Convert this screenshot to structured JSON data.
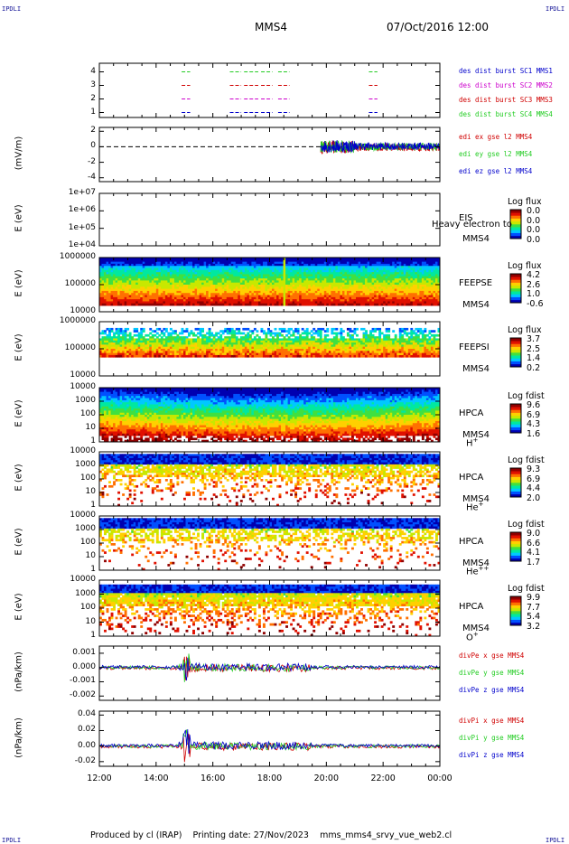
{
  "header": {
    "corner_text": "IPDLI",
    "spacecraft": "MMS4",
    "datetime": "07/Oct/2016 12:00"
  },
  "footer": {
    "produced": "Produced by cl (IRAP)",
    "printing": "Printing date: 27/Nov/2023",
    "script": "mms_mms4_srvy_vue_web2.cl"
  },
  "colors": {
    "red": "#d00000",
    "green": "#22cc22",
    "blue": "#0000cc",
    "magenta": "#cc00cc",
    "colormap": [
      "#0000b0",
      "#0050ff",
      "#00c8ff",
      "#00e8a0",
      "#40e040",
      "#c8e800",
      "#ffd000",
      "#ff7000",
      "#e01000",
      "#900000"
    ]
  },
  "chart_data": [
    {
      "type": "timeline",
      "ylabel": "",
      "yticks": [
        "4",
        "3",
        "2",
        "1"
      ],
      "series": [
        {
          "name": "des dist burst SC1 MMS1",
          "color": "#0000cc",
          "level": 1
        },
        {
          "name": "des dist burst SC2 MMS2",
          "color": "#cc00cc",
          "level": 2
        },
        {
          "name": "des dist burst SC3 MMS3",
          "color": "#d00000",
          "level": 3
        },
        {
          "name": "des dist burst SC4 MMS4",
          "color": "#22cc22",
          "level": 4
        }
      ],
      "intervals": [
        [
          14.9,
          15.2
        ],
        [
          16.6,
          17.0
        ],
        [
          17.1,
          17.6
        ],
        [
          17.7,
          18.1
        ],
        [
          18.3,
          18.7
        ],
        [
          21.5,
          21.8
        ]
      ]
    },
    {
      "type": "line",
      "ylabel": "(mV/m)",
      "yticks": [
        "2",
        "0",
        "-2",
        "-4"
      ],
      "ylim": [
        -4.5,
        2.5
      ],
      "series": [
        {
          "name": "edi ex gse l2 MMS4",
          "color": "#d00000"
        },
        {
          "name": "edi ey gse l2 MMS4",
          "color": "#22cc22"
        },
        {
          "name": "edi ez gse l2 MMS4",
          "color": "#0000cc"
        }
      ],
      "data_start": 19.8,
      "note_dashed_zero": true
    },
    {
      "type": "heatmap",
      "ylabel": "E (eV)",
      "yticks": [
        "1e+07",
        "1e+06",
        "1e+05",
        "1e+04"
      ],
      "instrument": [
        "EIS",
        "MMS4"
      ],
      "overlay_text": "Heavy electron to",
      "colorbar_title": "Log flux",
      "colorbar_values": [
        "0.0",
        "0.0",
        "0.0",
        "0.0"
      ],
      "empty": true
    },
    {
      "type": "heatmap",
      "ylabel": "E (eV)",
      "yticks": [
        "1000000",
        "100000",
        "10000"
      ],
      "instrument": [
        "FEEPSE",
        "MMS4"
      ],
      "colorbar_title": "Log flux",
      "colorbar_values": [
        "4.2",
        "2.6",
        "1.0",
        "-0.6"
      ]
    },
    {
      "type": "heatmap",
      "ylabel": "E (eV)",
      "yticks": [
        "1000000",
        "100000",
        "10000"
      ],
      "instrument": [
        "FEEPSI",
        "MMS4"
      ],
      "colorbar_title": "Log flux",
      "colorbar_values": [
        "3.7",
        "2.5",
        "1.4",
        "0.2"
      ]
    },
    {
      "type": "heatmap",
      "ylabel": "E (eV)",
      "yticks": [
        "10000",
        "1000",
        "100",
        "10",
        "1"
      ],
      "instrument": [
        "HPCA",
        "MMS4",
        "H",
        "+"
      ],
      "colorbar_title": "Log fdist",
      "colorbar_values": [
        "9.6",
        "6.9",
        "4.3",
        "1.6"
      ]
    },
    {
      "type": "heatmap",
      "ylabel": "E (eV)",
      "yticks": [
        "10000",
        "1000",
        "100",
        "10",
        "1"
      ],
      "instrument": [
        "HPCA",
        "MMS4",
        "He",
        "+"
      ],
      "colorbar_title": "Log fdist",
      "colorbar_values": [
        "9.3",
        "6.9",
        "4.4",
        "2.0"
      ]
    },
    {
      "type": "heatmap",
      "ylabel": "E (eV)",
      "yticks": [
        "10000",
        "1000",
        "100",
        "10",
        "1"
      ],
      "instrument": [
        "HPCA",
        "MMS4",
        "He",
        "++"
      ],
      "colorbar_title": "Log fdist",
      "colorbar_values": [
        "9.0",
        "6.6",
        "4.1",
        "1.7"
      ]
    },
    {
      "type": "heatmap",
      "ylabel": "E (eV)",
      "yticks": [
        "10000",
        "1000",
        "100",
        "10",
        "1"
      ],
      "instrument": [
        "HPCA",
        "MMS4",
        "O",
        "+"
      ],
      "colorbar_title": "Log fdist",
      "colorbar_values": [
        "9.9",
        "7.7",
        "5.4",
        "3.2"
      ]
    },
    {
      "type": "line",
      "ylabel": "(nPa/km)",
      "yticks": [
        "0.001",
        "0.000",
        "-0.001",
        "-0.002"
      ],
      "ylim": [
        -0.0023,
        0.0015
      ],
      "series": [
        {
          "name": "divPe x gse MMS4",
          "color": "#d00000"
        },
        {
          "name": "divPe y gse MMS4",
          "color": "#22cc22"
        },
        {
          "name": "divPe z gse MMS4",
          "color": "#0000cc"
        }
      ]
    },
    {
      "type": "line",
      "ylabel": "(nPa/km)",
      "yticks": [
        "0.04",
        "0.02",
        "0.00",
        "-0.02"
      ],
      "ylim": [
        -0.026,
        0.045
      ],
      "series": [
        {
          "name": "divPi x gse MMS4",
          "color": "#d00000"
        },
        {
          "name": "divPi y gse MMS4",
          "color": "#22cc22"
        },
        {
          "name": "divPi z gse MMS4",
          "color": "#0000cc"
        }
      ]
    }
  ],
  "x_axis": {
    "ticks": [
      "12:00",
      "14:00",
      "16:00",
      "18:00",
      "20:00",
      "22:00",
      "00:00"
    ],
    "range_hours": [
      12,
      24
    ]
  }
}
